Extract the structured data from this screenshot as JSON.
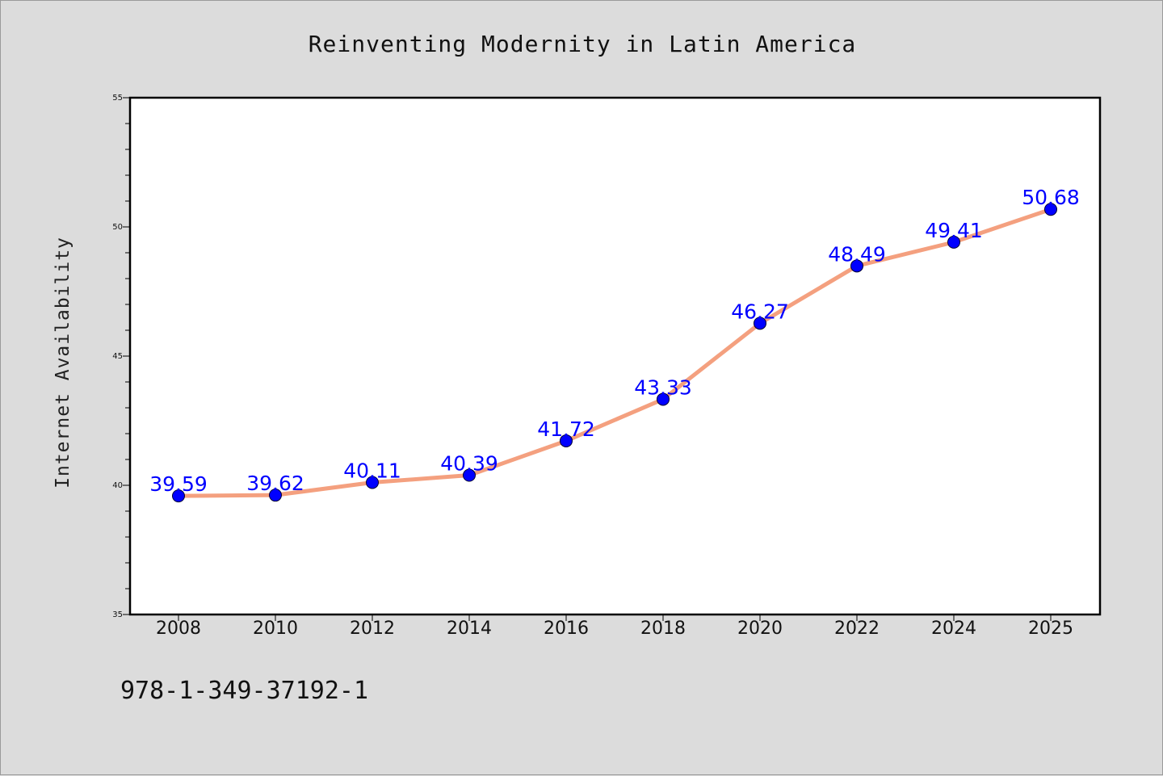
{
  "colors": {
    "background": "#dcdcdc",
    "plot_background": "#ffffff",
    "line": "#f4a07f",
    "marker": "#0000ff",
    "data_label": "#0000ff"
  },
  "isbn": "978-1-349-37192-1",
  "chart_data": {
    "type": "line",
    "title": "Reinventing Modernity in Latin America",
    "xlabel": "",
    "ylabel": "Internet Availability",
    "categories": [
      "2008",
      "2010",
      "2012",
      "2014",
      "2016",
      "2018",
      "2020",
      "2022",
      "2024",
      "2025"
    ],
    "series": [
      {
        "values": [
          39.59,
          39.62,
          40.11,
          40.39,
          41.72,
          43.33,
          46.27,
          48.49,
          49.41,
          50.68
        ],
        "data_labels": [
          "39.59",
          "39.62",
          "40.11",
          "40.39",
          "41.72",
          "43.33",
          "46.27",
          "48.49",
          "49.41",
          "50.68"
        ]
      }
    ],
    "ylim": [
      35,
      55
    ],
    "yticks": [
      "35",
      "40",
      "45",
      "50",
      "55"
    ],
    "yminor_step": 1,
    "grid": false,
    "legend": "none"
  }
}
